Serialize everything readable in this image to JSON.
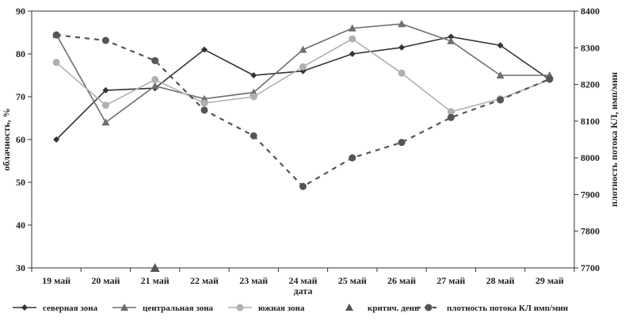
{
  "chart_data": {
    "type": "line",
    "categories": [
      "19 май",
      "20 май",
      "21 май",
      "22 май",
      "23 май",
      "24 май",
      "25 май",
      "26 май",
      "27 май",
      "28 май",
      "29 май"
    ],
    "xlabel": "дата",
    "ylabel_left": "облачность, %",
    "ylabel_right": "плотность потока КЛ, имп/мин",
    "ylim_left": [
      30,
      90
    ],
    "yticks_left": [
      30,
      40,
      50,
      60,
      70,
      80,
      90
    ],
    "ylim_right": [
      7700,
      8400
    ],
    "yticks_right": [
      7700,
      7800,
      7900,
      8000,
      8100,
      8200,
      8300,
      8400
    ],
    "grid": false,
    "legend_position": "bottom",
    "series": [
      {
        "name": "северная зона",
        "axis": "left",
        "marker": "diamond",
        "color": "#333333",
        "values": [
          60,
          71.5,
          72,
          81,
          75,
          76,
          80,
          81.5,
          84,
          82,
          74
        ]
      },
      {
        "name": "центральная зона",
        "axis": "left",
        "marker": "triangle",
        "color": "#6e6e6e",
        "values": [
          84.5,
          64,
          72.5,
          69.5,
          71,
          81,
          86,
          87,
          83,
          75,
          75
        ]
      },
      {
        "name": "южная зона",
        "axis": "left",
        "marker": "circle",
        "color": "#b0b0b0",
        "values": [
          78,
          68,
          74,
          68.5,
          70,
          77,
          83.5,
          75.5,
          66.5,
          69.5,
          74
        ]
      },
      {
        "name": "критич. день",
        "axis": "left",
        "marker": "triangle",
        "color": "#555555",
        "points": [
          {
            "x": "21 май",
            "y": 30
          }
        ]
      },
      {
        "name": "плотность потока КЛ имп/мин",
        "axis": "right",
        "marker": "circle",
        "color": "#555555",
        "dashed": true,
        "values": [
          8335,
          8320,
          8265,
          8130,
          8060,
          7922,
          8000,
          8042,
          8110,
          8158,
          8215
        ]
      }
    ]
  }
}
